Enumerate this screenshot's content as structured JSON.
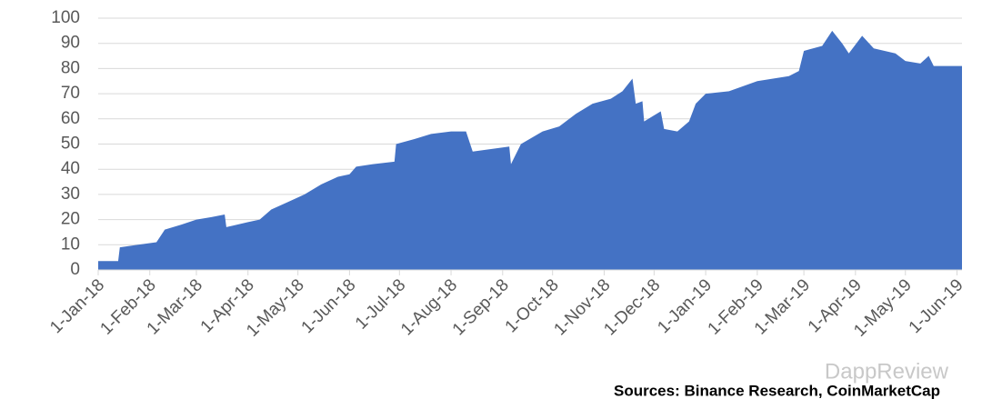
{
  "chart_data": {
    "type": "area",
    "x": [
      "2018-01-01",
      "2018-01-13",
      "2018-01-14",
      "2018-01-25",
      "2018-02-05",
      "2018-02-10",
      "2018-02-20",
      "2018-03-01",
      "2018-03-10",
      "2018-03-18",
      "2018-03-19",
      "2018-04-01",
      "2018-04-08",
      "2018-04-15",
      "2018-04-25",
      "2018-05-05",
      "2018-05-15",
      "2018-05-25",
      "2018-06-01",
      "2018-06-05",
      "2018-06-15",
      "2018-06-28",
      "2018-06-29",
      "2018-07-10",
      "2018-07-20",
      "2018-08-01",
      "2018-08-10",
      "2018-08-14",
      "2018-08-25",
      "2018-09-05",
      "2018-09-06",
      "2018-09-12",
      "2018-09-25",
      "2018-10-05",
      "2018-10-15",
      "2018-10-25",
      "2018-11-05",
      "2018-11-12",
      "2018-11-18",
      "2018-11-20",
      "2018-11-24",
      "2018-11-25",
      "2018-12-05",
      "2018-12-07",
      "2018-12-15",
      "2018-12-22",
      "2018-12-26",
      "2019-01-01",
      "2019-01-15",
      "2019-02-01",
      "2019-02-20",
      "2019-02-26",
      "2019-03-01",
      "2019-03-12",
      "2019-03-18",
      "2019-03-24",
      "2019-03-28",
      "2019-04-05",
      "2019-04-12",
      "2019-04-25",
      "2019-05-01",
      "2019-05-10",
      "2019-05-15",
      "2019-05-18",
      "2019-05-25",
      "2019-06-04"
    ],
    "values": [
      3.5,
      3.5,
      9,
      10,
      11,
      16,
      18,
      20,
      21,
      22,
      17,
      19,
      20,
      24,
      27,
      30,
      34,
      37,
      38,
      41,
      42,
      43,
      50,
      52,
      54,
      55,
      55,
      47,
      48,
      49,
      42,
      50,
      55,
      57,
      62,
      66,
      68,
      71,
      76,
      66,
      67,
      59,
      63,
      56,
      55,
      59,
      66,
      70,
      71,
      75,
      77,
      79,
      87,
      89,
      95,
      90,
      86,
      93,
      88,
      86,
      83,
      82,
      85,
      81,
      81,
      81
    ],
    "color": "#4472c4",
    "xlim": [
      "2018-01-01",
      "2019-06-04"
    ],
    "xticks": [
      {
        "value": "2018-01-01",
        "label": "1-Jan-18"
      },
      {
        "value": "2018-02-01",
        "label": "1-Feb-18"
      },
      {
        "value": "2018-03-01",
        "label": "1-Mar-18"
      },
      {
        "value": "2018-04-01",
        "label": "1-Apr-18"
      },
      {
        "value": "2018-05-01",
        "label": "1-May-18"
      },
      {
        "value": "2018-06-01",
        "label": "1-Jun-18"
      },
      {
        "value": "2018-07-01",
        "label": "1-Jul-18"
      },
      {
        "value": "2018-08-01",
        "label": "1-Aug-18"
      },
      {
        "value": "2018-09-01",
        "label": "1-Sep-18"
      },
      {
        "value": "2018-10-01",
        "label": "1-Oct-18"
      },
      {
        "value": "2018-11-01",
        "label": "1-Nov-18"
      },
      {
        "value": "2018-12-01",
        "label": "1-Dec-18"
      },
      {
        "value": "2019-01-01",
        "label": "1-Jan-19"
      },
      {
        "value": "2019-02-01",
        "label": "1-Feb-19"
      },
      {
        "value": "2019-03-01",
        "label": "1-Mar-19"
      },
      {
        "value": "2019-04-01",
        "label": "1-Apr-19"
      },
      {
        "value": "2019-05-01",
        "label": "1-May-19"
      },
      {
        "value": "2019-06-01",
        "label": "1-Jun-19"
      }
    ],
    "ylim": [
      0,
      100
    ],
    "yticks": [
      0,
      10,
      20,
      30,
      40,
      50,
      60,
      70,
      80,
      90,
      100
    ],
    "grid": true,
    "source": "Sources: Binance Research, CoinMarketCap",
    "watermark": "DappReview"
  }
}
